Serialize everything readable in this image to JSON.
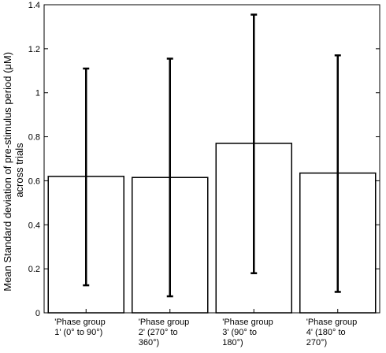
{
  "chart_data": {
    "type": "bar",
    "categories": [
      [
        "'Phase group",
        "1' (0° to 90°)"
      ],
      [
        "'Phase group",
        "2' (270° to",
        "360°)"
      ],
      [
        "'Phase group",
        "3' (90° to",
        "180°)"
      ],
      [
        "'Phase group",
        "4' (180° to",
        "270°)"
      ]
    ],
    "values": [
      0.62,
      0.615,
      0.77,
      0.635
    ],
    "error_low": [
      0.125,
      0.075,
      0.18,
      0.095
    ],
    "error_high": [
      1.11,
      1.155,
      1.355,
      1.17
    ],
    "ylabel_lines": [
      "Mean Standard deviation of pre-stimulus period (μM)",
      "across trials"
    ],
    "xlabel": "",
    "ylim": [
      0,
      1.4
    ],
    "yticks": [
      0,
      0.2,
      0.4,
      0.6,
      0.8,
      1,
      1.2,
      1.4
    ],
    "ytick_labels": [
      "0",
      "0.2",
      "0.4",
      "0.6",
      "0.8",
      "1",
      "1.2",
      "1.4"
    ],
    "grid": false,
    "bar_fill": "#ffffff",
    "bar_stroke": "#000000"
  }
}
